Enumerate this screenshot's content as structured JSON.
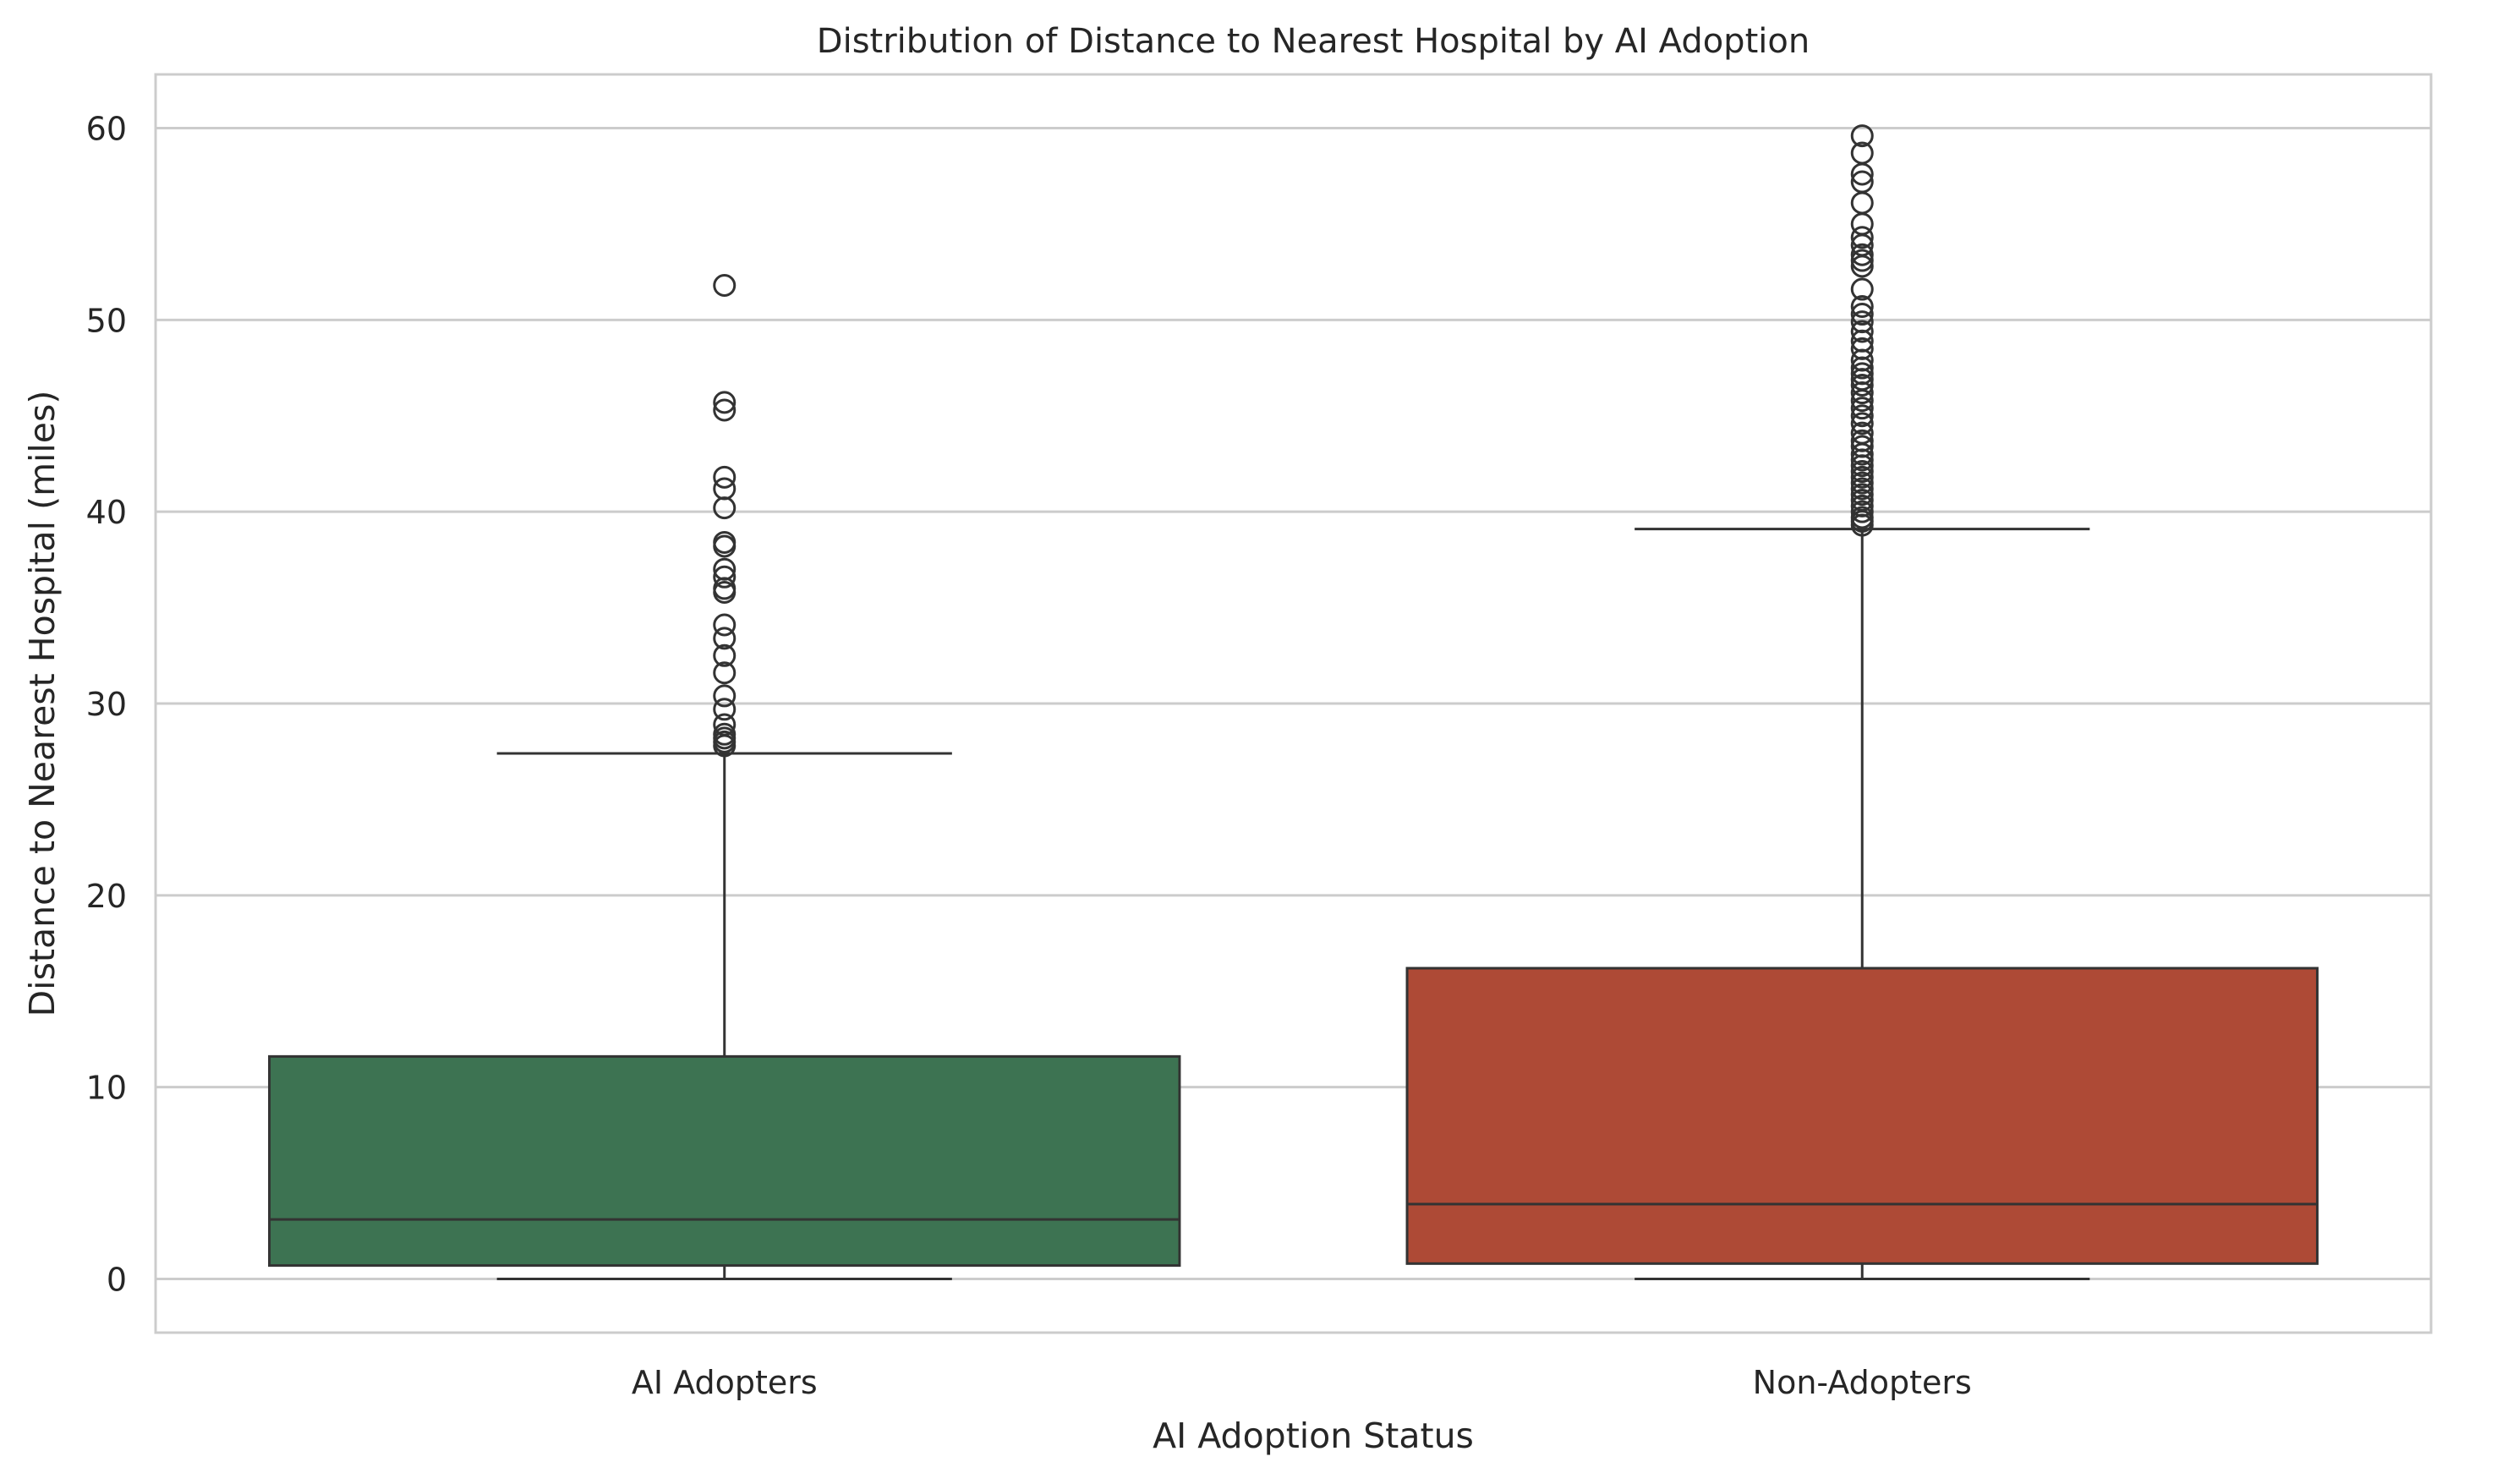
{
  "chart_data": {
    "type": "box",
    "title": "Distribution of Distance to Nearest Hospital by AI Adoption",
    "xlabel": "AI Adoption Status",
    "ylabel": "Distance to Nearest Hospital (miles)",
    "ylim": [
      -2.8,
      62.8
    ],
    "yticks": [
      0,
      10,
      20,
      30,
      40,
      50,
      60
    ],
    "grid": true,
    "categories": [
      "AI Adopters",
      "Non-Adopters"
    ],
    "boxes": [
      {
        "category": "AI Adopters",
        "color": "#3d7352",
        "whisker_low": 0.0,
        "q1": 0.7,
        "median": 3.1,
        "q3": 11.6,
        "whisker_high": 27.4,
        "outliers": [
          51.8,
          45.7,
          45.3,
          41.8,
          41.2,
          40.2,
          38.4,
          38.2,
          37.0,
          36.6,
          36.0,
          35.8,
          34.1,
          33.4,
          32.5,
          31.6,
          30.4,
          29.7,
          28.9,
          28.4,
          28.2,
          28.0,
          27.8
        ]
      },
      {
        "category": "Non-Adopters",
        "color": "#ae4a36",
        "whisker_low": 0.0,
        "q1": 0.8,
        "median": 3.9,
        "q3": 16.2,
        "whisker_high": 39.1,
        "outliers": [
          59.6,
          58.7,
          57.6,
          57.2,
          56.1,
          55.0,
          54.3,
          53.9,
          53.4,
          53.1,
          52.8,
          51.6,
          50.7,
          50.3,
          49.9,
          49.4,
          48.9,
          48.5,
          47.9,
          47.5,
          47.2,
          46.9,
          46.6,
          46.2,
          45.8,
          45.4,
          45.0,
          44.6,
          44.1,
          43.7,
          43.4,
          43.0,
          42.7,
          42.4,
          42.1,
          41.8,
          41.5,
          41.2,
          40.9,
          40.6,
          40.3,
          40.0,
          39.7,
          39.5,
          39.3
        ]
      }
    ]
  }
}
